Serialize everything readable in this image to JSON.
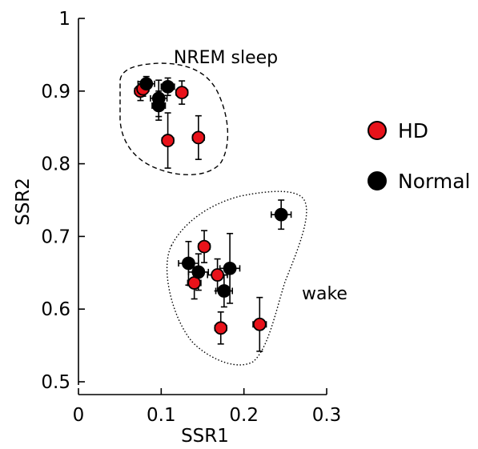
{
  "chart_data": {
    "type": "scatter",
    "title": "",
    "xlabel": "SSR1",
    "ylabel": "SSR2",
    "xlim": [
      0,
      0.3
    ],
    "ylim": [
      0.5,
      1
    ],
    "xticks": [
      0,
      0.1,
      0.2,
      0.3
    ],
    "xtick_labels": [
      "0",
      "0.1",
      "0.2",
      "0.3"
    ],
    "yticks": [
      0.5,
      0.6,
      0.7,
      0.8,
      0.9,
      1
    ],
    "ytick_labels": [
      "0.5",
      "0.6",
      "0.7",
      "0.8",
      "0.9",
      "1"
    ],
    "grid": false,
    "legend_position": "right",
    "series": [
      {
        "name": "HD",
        "color": "#e8121a",
        "points": [
          {
            "x": 0.075,
            "y": 0.9,
            "xerr": 0.007,
            "yerr": 0.013
          },
          {
            "x": 0.078,
            "y": 0.903,
            "xerr": 0.006,
            "yerr": 0.01
          },
          {
            "x": 0.125,
            "y": 0.898,
            "xerr": 0.007,
            "yerr": 0.016
          },
          {
            "x": 0.108,
            "y": 0.832,
            "xerr": 0.007,
            "yerr": 0.038
          },
          {
            "x": 0.145,
            "y": 0.836,
            "xerr": 0.007,
            "yerr": 0.03
          },
          {
            "x": 0.152,
            "y": 0.686,
            "xerr": 0.007,
            "yerr": 0.022
          },
          {
            "x": 0.14,
            "y": 0.636,
            "xerr": 0.008,
            "yerr": 0.022
          },
          {
            "x": 0.168,
            "y": 0.647,
            "xerr": 0.012,
            "yerr": 0.022
          },
          {
            "x": 0.172,
            "y": 0.574,
            "xerr": 0.007,
            "yerr": 0.022
          },
          {
            "x": 0.219,
            "y": 0.579,
            "xerr": 0.008,
            "yerr": 0.037
          }
        ]
      },
      {
        "name": "Normal",
        "color": "#000000",
        "points": [
          {
            "x": 0.082,
            "y": 0.91,
            "xerr": 0.01,
            "yerr": 0.01
          },
          {
            "x": 0.108,
            "y": 0.906,
            "xerr": 0.008,
            "yerr": 0.012
          },
          {
            "x": 0.097,
            "y": 0.89,
            "xerr": 0.01,
            "yerr": 0.025
          },
          {
            "x": 0.097,
            "y": 0.88,
            "xerr": 0.008,
            "yerr": 0.02
          },
          {
            "x": 0.245,
            "y": 0.73,
            "xerr": 0.012,
            "yerr": 0.02
          },
          {
            "x": 0.133,
            "y": 0.663,
            "xerr": 0.012,
            "yerr": 0.03
          },
          {
            "x": 0.145,
            "y": 0.651,
            "xerr": 0.012,
            "yerr": 0.025
          },
          {
            "x": 0.183,
            "y": 0.656,
            "xerr": 0.012,
            "yerr": 0.048
          },
          {
            "x": 0.176,
            "y": 0.625,
            "xerr": 0.01,
            "yerr": 0.022
          }
        ]
      }
    ],
    "annotations": [
      {
        "text": "NREM sleep"
      },
      {
        "text": "wake"
      }
    ]
  }
}
